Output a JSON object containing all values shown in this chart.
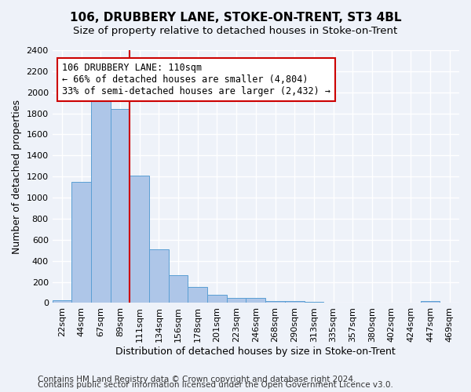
{
  "title": "106, DRUBBERY LANE, STOKE-ON-TRENT, ST3 4BL",
  "subtitle": "Size of property relative to detached houses in Stoke-on-Trent",
  "xlabel": "Distribution of detached houses by size in Stoke-on-Trent",
  "ylabel": "Number of detached properties",
  "bin_labels": [
    "22sqm",
    "44sqm",
    "67sqm",
    "89sqm",
    "111sqm",
    "134sqm",
    "156sqm",
    "178sqm",
    "201sqm",
    "223sqm",
    "246sqm",
    "268sqm",
    "290sqm",
    "313sqm",
    "335sqm",
    "357sqm",
    "380sqm",
    "402sqm",
    "424sqm",
    "447sqm",
    "469sqm"
  ],
  "bar_heights": [
    25,
    1150,
    1955,
    1840,
    1210,
    510,
    265,
    155,
    80,
    50,
    45,
    20,
    18,
    12,
    5,
    5,
    5,
    0,
    0,
    20,
    0
  ],
  "bar_color": "#aec6e8",
  "bar_edge_color": "#5a9fd4",
  "property_line_x": 4,
  "property_sqm": 110,
  "annotation_text": "106 DRUBBERY LANE: 110sqm\n← 66% of detached houses are smaller (4,804)\n33% of semi-detached houses are larger (2,432) →",
  "annotation_box_color": "#ffffff",
  "annotation_box_edge_color": "#cc0000",
  "ylim": [
    0,
    2400
  ],
  "yticks": [
    0,
    200,
    400,
    600,
    800,
    1000,
    1200,
    1400,
    1600,
    1800,
    2000,
    2200,
    2400
  ],
  "footer_line1": "Contains HM Land Registry data © Crown copyright and database right 2024.",
  "footer_line2": "Contains public sector information licensed under the Open Government Licence v3.0.",
  "background_color": "#eef2f9",
  "grid_color": "#ffffff",
  "title_fontsize": 11,
  "subtitle_fontsize": 9.5,
  "axis_label_fontsize": 9,
  "tick_fontsize": 8,
  "annotation_fontsize": 8.5,
  "footer_fontsize": 7.5,
  "red_line_color": "#cc0000"
}
